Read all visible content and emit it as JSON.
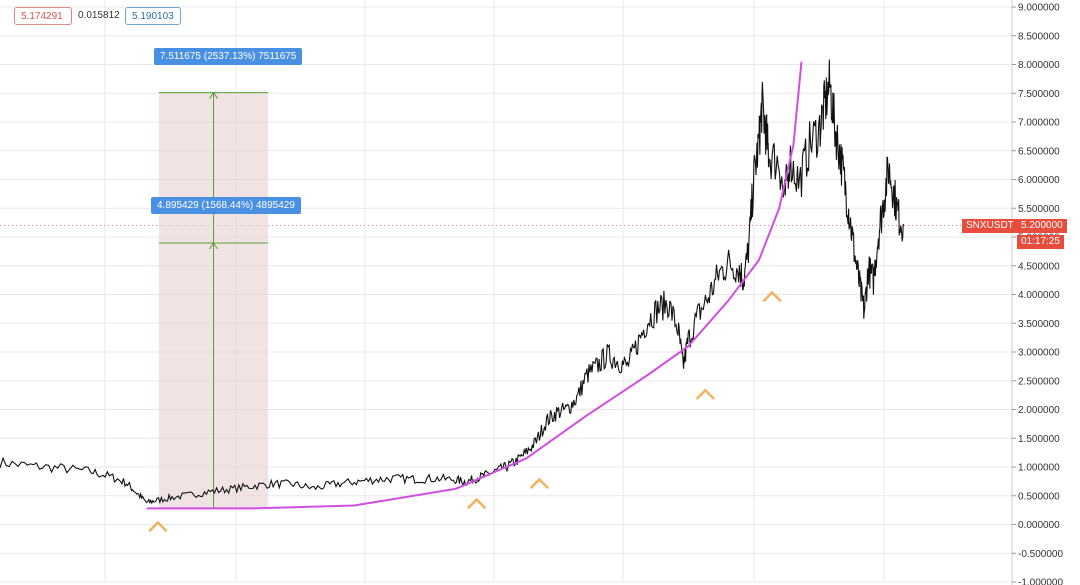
{
  "header": {
    "low_value": "5.174291",
    "change_value": "0.015812",
    "close_value": "5.190103"
  },
  "measurements": {
    "top_label": "7.511675 (2537.13%) 7511675",
    "mid_label": "4.895429 (1568.44%) 4895429"
  },
  "price_badge": {
    "symbol": "SNXUSDT",
    "price": "5.200000",
    "timer": "01:17:25"
  },
  "colors": {
    "price_line": "#111111",
    "curve": "#d04fe0",
    "arrow_markers": "#f2b15a",
    "measure_fill": "#ecd9d9",
    "measure_line": "#5a9e3a",
    "label_bg": "#4a90e2",
    "badge_bg": "#e74c3c",
    "grid": "#e8e8e8"
  },
  "chart_data": {
    "type": "line",
    "title": "",
    "xlabel": "",
    "ylabel": "",
    "ylim": [
      -1.0,
      9.0
    ],
    "y_ticks": [
      "9.000000",
      "8.500000",
      "8.000000",
      "7.500000",
      "7.000000",
      "6.500000",
      "6.000000",
      "5.500000",
      "5.000000",
      "4.500000",
      "4.000000",
      "3.500000",
      "3.000000",
      "2.500000",
      "2.000000",
      "1.500000",
      "1.000000",
      "0.500000",
      "0.000000",
      "-0.500000",
      "-1.000000"
    ],
    "x_range": [
      0,
      100
    ],
    "grid": true,
    "series": [
      {
        "values": [
          [
            0,
            1.08
          ],
          [
            3,
            1.02
          ],
          [
            6,
            0.98
          ],
          [
            9,
            0.92
          ],
          [
            11,
            0.83
          ],
          [
            12.5,
            0.72
          ],
          [
            13.5,
            0.55
          ],
          [
            14.5,
            0.38
          ],
          [
            15.5,
            0.42
          ],
          [
            17,
            0.47
          ],
          [
            19,
            0.52
          ],
          [
            21,
            0.58
          ],
          [
            23,
            0.62
          ],
          [
            25,
            0.67
          ],
          [
            27,
            0.71
          ],
          [
            29,
            0.7
          ],
          [
            31,
            0.63
          ],
          [
            33,
            0.7
          ],
          [
            35,
            0.74
          ],
          [
            37,
            0.78
          ],
          [
            39,
            0.8
          ],
          [
            41,
            0.79
          ],
          [
            43,
            0.8
          ],
          [
            45,
            0.78
          ],
          [
            46,
            0.74
          ],
          [
            47,
            0.8
          ],
          [
            48,
            0.86
          ],
          [
            49,
            0.93
          ],
          [
            50,
            1.0
          ],
          [
            51,
            1.1
          ],
          [
            52,
            1.25
          ],
          [
            53,
            1.45
          ],
          [
            54,
            1.8
          ],
          [
            55,
            1.95
          ],
          [
            56,
            2.0
          ],
          [
            57,
            2.2
          ],
          [
            58,
            2.6
          ],
          [
            59,
            2.75
          ],
          [
            60,
            2.95
          ],
          [
            61,
            2.85
          ],
          [
            62,
            2.75
          ],
          [
            63,
            3.15
          ],
          [
            64,
            3.55
          ],
          [
            65,
            3.75
          ],
          [
            66,
            3.85
          ],
          [
            67,
            3.4
          ],
          [
            67.5,
            2.75
          ],
          [
            68,
            3.2
          ],
          [
            69,
            3.65
          ],
          [
            70,
            3.95
          ],
          [
            71,
            4.35
          ],
          [
            72,
            4.55
          ],
          [
            73,
            4.45
          ],
          [
            73.5,
            4.25
          ],
          [
            74,
            4.85
          ],
          [
            74.5,
            6.05
          ],
          [
            75,
            6.65
          ],
          [
            75.3,
            7.3
          ],
          [
            75.7,
            6.8
          ],
          [
            76,
            6.4
          ],
          [
            77,
            6.3
          ],
          [
            77.5,
            5.6
          ],
          [
            78,
            6.35
          ],
          [
            79,
            5.95
          ],
          [
            80,
            6.6
          ],
          [
            81,
            6.9
          ],
          [
            81.5,
            7.3
          ],
          [
            82,
            7.65
          ],
          [
            82.5,
            6.9
          ],
          [
            83,
            6.45
          ],
          [
            83.5,
            5.9
          ],
          [
            84,
            5.3
          ],
          [
            84.5,
            4.65
          ],
          [
            85,
            4.1
          ],
          [
            85.4,
            3.7
          ],
          [
            85.8,
            4.45
          ],
          [
            86.3,
            4.25
          ],
          [
            86.8,
            5.05
          ],
          [
            87.3,
            5.6
          ],
          [
            87.8,
            6.2
          ],
          [
            88.3,
            5.8
          ],
          [
            88.8,
            5.35
          ],
          [
            89.3,
            5.2
          ]
        ]
      },
      {
        "values": [
          [
            14.5,
            0.28
          ],
          [
            25,
            0.28
          ],
          [
            35,
            0.33
          ],
          [
            45,
            0.62
          ],
          [
            52,
            1.15
          ],
          [
            58,
            1.9
          ],
          [
            64,
            2.6
          ],
          [
            68,
            3.1
          ],
          [
            72,
            3.9
          ],
          [
            75,
            4.6
          ],
          [
            77,
            5.5
          ],
          [
            78.4,
            6.6
          ],
          [
            79.2,
            8.05
          ]
        ]
      }
    ],
    "measurement": {
      "x_range": [
        15.7,
        26.5
      ],
      "base": 0.28,
      "levels": [
        4.895429,
        7.511675
      ],
      "labels": [
        "4.895429 (1568.44%) 4895429",
        "7.511675 (2537.13%) 7511675"
      ]
    },
    "markers": {
      "type": "caret-up",
      "points": [
        [
          15.6,
          0.0
        ],
        [
          47.1,
          0.4
        ],
        [
          53.3,
          0.75
        ],
        [
          69.7,
          2.3
        ],
        [
          76.3,
          4.0
        ]
      ]
    },
    "current_price": 5.2
  }
}
